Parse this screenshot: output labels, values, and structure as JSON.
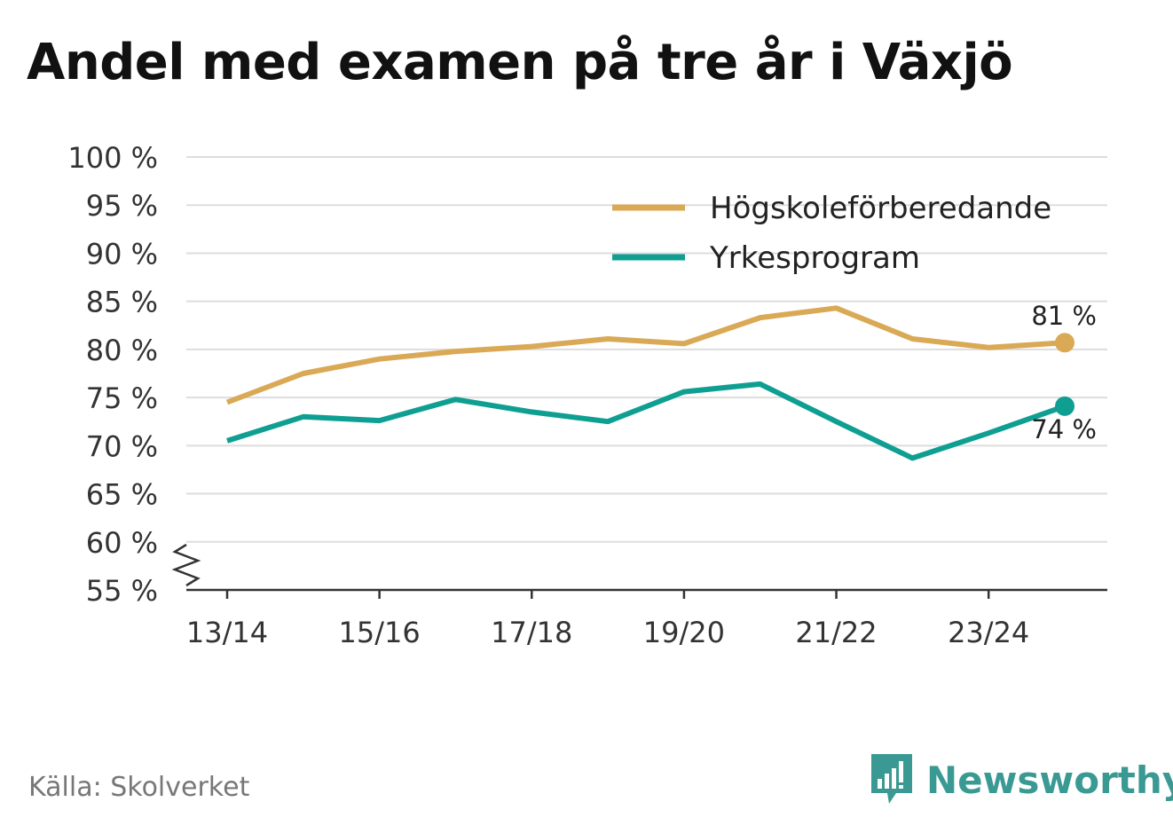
{
  "title": "Andel med examen på tre år i Växjö",
  "source": "Källa: Skolverket",
  "brand": "Newsworthy",
  "colors": {
    "series_1": "#d9a955",
    "series_2": "#0f9f92",
    "brand": "#3a9a93"
  },
  "chart_data": {
    "type": "line",
    "title": "Andel med examen på tre år i Växjö",
    "xlabel": "",
    "ylabel": "",
    "x": [
      "13/14",
      "14/15",
      "15/16",
      "16/17",
      "17/18",
      "18/19",
      "19/20",
      "20/21",
      "21/22",
      "22/23",
      "23/24",
      "24/25"
    ],
    "x_tick_labels": [
      "13/14",
      "15/16",
      "17/18",
      "19/20",
      "21/22",
      "23/24"
    ],
    "x_tick_indices": [
      0,
      2,
      4,
      6,
      8,
      10
    ],
    "y_ticks": [
      55,
      60,
      65,
      70,
      75,
      80,
      85,
      90,
      95,
      100
    ],
    "y_tick_labels": [
      "55 %",
      "60 %",
      "65 %",
      "70 %",
      "75 %",
      "80 %",
      "85 %",
      "90 %",
      "95 %",
      "100 %"
    ],
    "ylim": [
      55,
      100
    ],
    "axis_break": true,
    "grid": true,
    "legend_position": "top-right",
    "series": [
      {
        "name": "Högskoleförberedande",
        "values": [
          74.5,
          77.5,
          79.0,
          79.8,
          80.3,
          81.1,
          80.6,
          83.3,
          84.3,
          81.1,
          80.2,
          80.7
        ],
        "end_label": "81 %"
      },
      {
        "name": "Yrkesprogram",
        "values": [
          70.5,
          73.0,
          72.6,
          74.8,
          73.5,
          72.5,
          75.6,
          76.4,
          72.5,
          68.7,
          71.3,
          74.1
        ],
        "end_label": "74 %"
      }
    ]
  }
}
